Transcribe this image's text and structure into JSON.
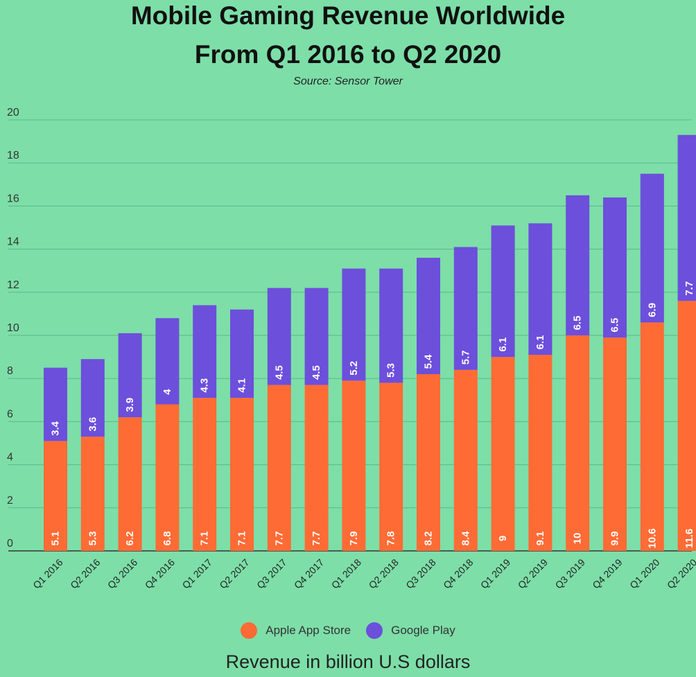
{
  "header": {
    "title_line1": "Mobile Gaming Revenue Worldwide",
    "title_line2": "From Q1 2016 to Q2 2020",
    "source": "Source: Sensor Tower"
  },
  "footer": {
    "caption": "Revenue in billion U.S dollars"
  },
  "colors": {
    "background": "#7ddea8",
    "apple": "#ff6b35",
    "google": "#6c4fdb",
    "grid": "#5cb886"
  },
  "chart_data": {
    "type": "bar",
    "stacked": true,
    "categories": [
      "Q1 2016",
      "Q2 2016",
      "Q3 2016",
      "Q4 2016",
      "Q1 2017",
      "Q2 2017",
      "Q3 2017",
      "Q4 2017",
      "Q1 2018",
      "Q2 2018",
      "Q3 2018",
      "Q4 2018",
      "Q1 2019",
      "Q2 2019",
      "Q3 2019",
      "Q4 2019",
      "Q1 2020",
      "Q2 2020"
    ],
    "series": [
      {
        "name": "Apple App Store",
        "color": "#ff6b35",
        "values": [
          5.1,
          5.3,
          6.2,
          6.8,
          7.1,
          7.1,
          7.7,
          7.7,
          7.9,
          7.8,
          8.2,
          8.4,
          9,
          9.1,
          10,
          9.9,
          10.6,
          11.6
        ]
      },
      {
        "name": "Google Play",
        "color": "#6c4fdb",
        "values": [
          3.4,
          3.6,
          3.9,
          4,
          4.3,
          4.1,
          4.5,
          4.5,
          5.2,
          5.3,
          5.4,
          5.7,
          6.1,
          6.1,
          6.5,
          6.5,
          6.9,
          7.7
        ]
      }
    ],
    "ylim": [
      0,
      20
    ],
    "yticks": [
      0,
      2,
      4,
      6,
      8,
      10,
      12,
      14,
      16,
      18,
      20
    ],
    "grid": true,
    "legend": "bottom-center"
  }
}
